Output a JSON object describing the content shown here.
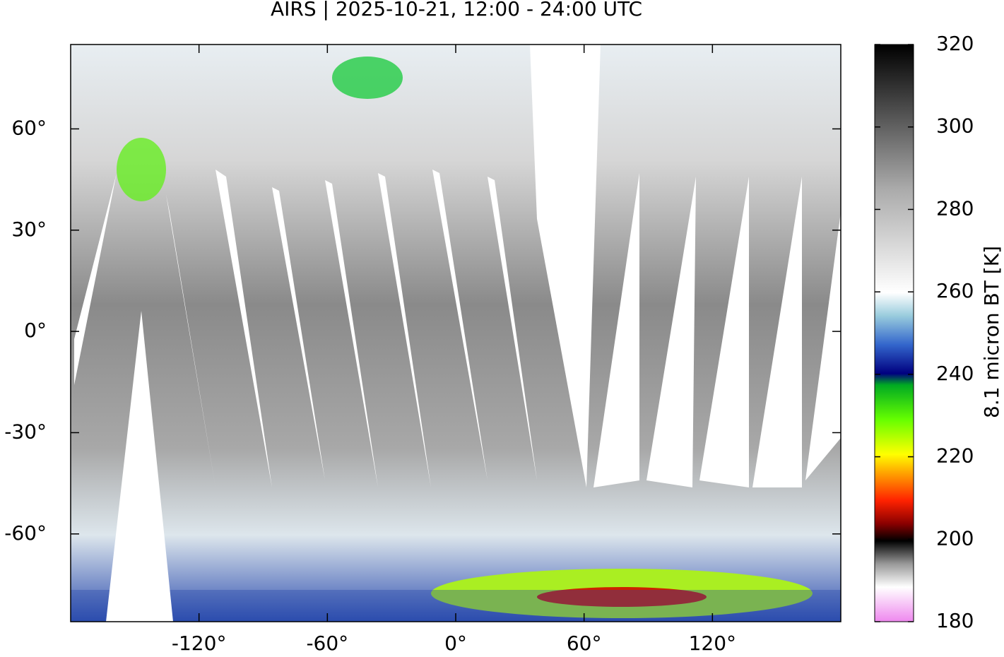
{
  "title": "AIRS | 2025-10-21, 12:00 - 24:00 UTC",
  "map": {
    "xlim": [
      -180,
      180
    ],
    "ylim": [
      -86,
      85
    ],
    "xticks": [
      {
        "value": -120,
        "label": "-120°"
      },
      {
        "value": -60,
        "label": "-60°"
      },
      {
        "value": 0,
        "label": "0°"
      },
      {
        "value": 60,
        "label": "60°"
      },
      {
        "value": 120,
        "label": "120°"
      }
    ],
    "yticks": [
      {
        "value": 60,
        "label": "60°"
      },
      {
        "value": 30,
        "label": "30°"
      },
      {
        "value": 0,
        "label": "0°"
      },
      {
        "value": -30,
        "label": "-30°"
      },
      {
        "value": -60,
        "label": "-60°"
      }
    ]
  },
  "colorbar": {
    "label": "8.1 micron BT [K]",
    "lim": [
      180,
      320
    ],
    "ticks": [
      180,
      200,
      220,
      240,
      260,
      280,
      300,
      320
    ]
  }
}
